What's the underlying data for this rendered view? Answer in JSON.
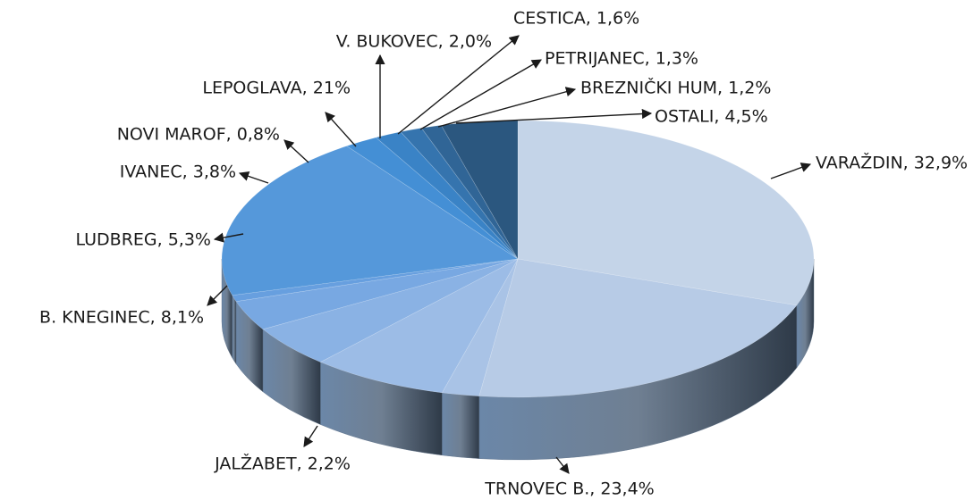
{
  "chart_data": {
    "type": "pie",
    "categories": [
      "VARAŽDIN",
      "TRNOVEC B.",
      "JALŽABET",
      "B. KNEGINEC",
      "LUDBREG",
      "IVANEC",
      "NOVI MAROF",
      "LEPOGLAVA",
      "V. BUKOVEC",
      "CESTICA",
      "PETRIJANEC",
      "BREZNIČKI HUM",
      "OSTALI"
    ],
    "values": [
      32.9,
      23.4,
      2.2,
      8.1,
      5.3,
      3.8,
      0.8,
      21,
      2.0,
      1.6,
      1.3,
      1.2,
      4.5
    ],
    "value_labels": [
      "VARAŽDIN, 32,9%",
      "TRNOVEC B., 23,4%",
      "JALŽABET, 2,2%",
      "B. KNEGINEC, 8,1%",
      "LUDBREG, 5,3%",
      "IVANEC, 3,8%",
      "NOVI MAROF, 0,8%",
      "LEPOGLAVA, 21%",
      "V. BUKOVEC, 2,0%",
      "CESTICA, 1,6%",
      "PETRIJANEC, 1,3%",
      "BREZNIČKI HUM, 1,2%",
      "OSTALI, 4,5%"
    ],
    "colors": [
      "#c4d4e8",
      "#b7cbe6",
      "#a9c3e6",
      "#9cbce6",
      "#8ab2e4",
      "#78a8e2",
      "#679fdf",
      "#5598da",
      "#448fd5",
      "#3a83c6",
      "#3574ae",
      "#306596",
      "#2b577f"
    ]
  }
}
